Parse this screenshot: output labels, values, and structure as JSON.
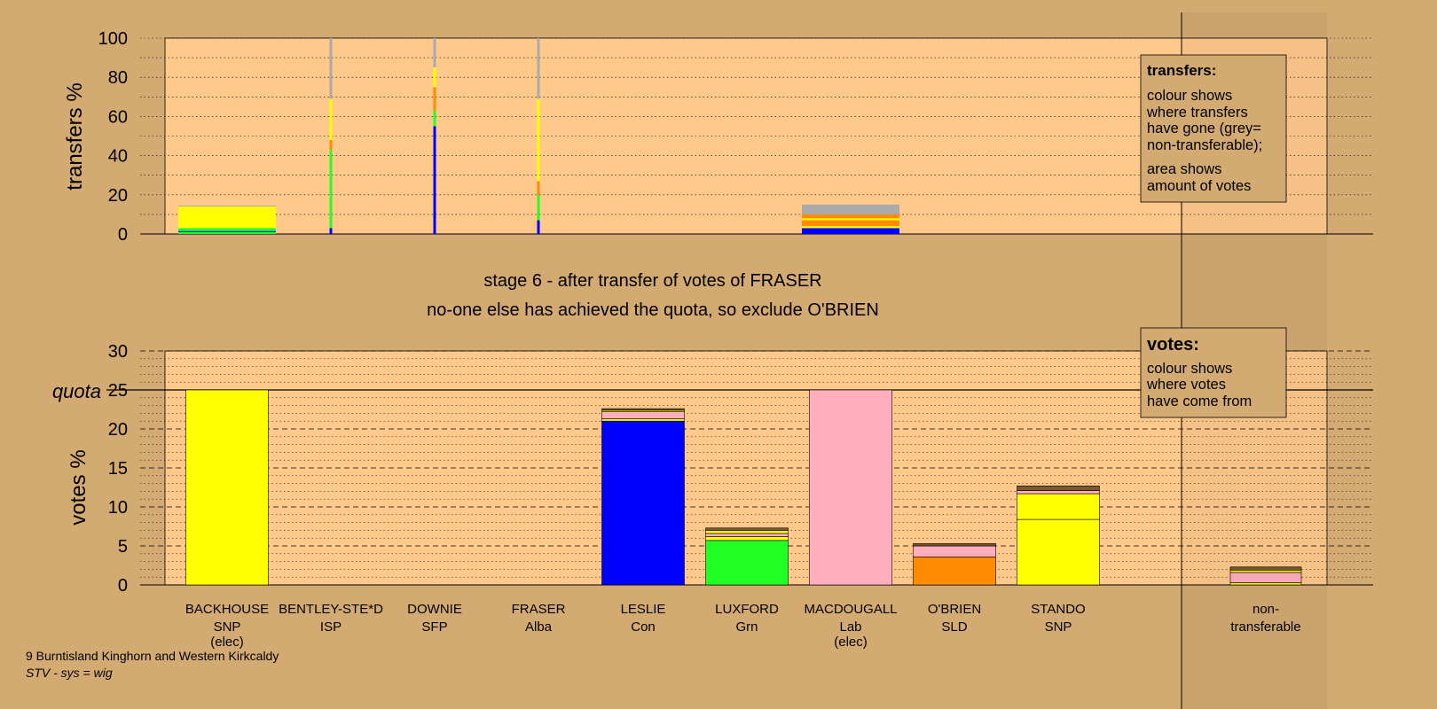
{
  "colors": {
    "background": "#d4aa73",
    "plot_area": "#ffc98c",
    "SNP": "#ffff00",
    "Con": "#0000ff",
    "Grn": "#22ff22",
    "Lab": "#ffaec0",
    "SLD": "#ff8c00",
    "non_transferable": "#aaaaaa",
    "other": "#7a5a2a"
  },
  "stage_title": "stage 6 - after transfer of votes of FRASER",
  "stage_note": "no-one else has achieved the quota, so exclude O'BRIEN",
  "footer": {
    "ward": "9 Burntisland Kinghorn and Western Kirkcaldy",
    "system": "STV - sys = wig"
  },
  "legend_transfers": {
    "title": "transfers:",
    "lines": [
      "colour shows",
      "where transfers",
      "have gone (grey=",
      "non-transferable);",
      "area shows",
      "amount of votes"
    ]
  },
  "legend_votes": {
    "title": "votes:",
    "lines": [
      "colour shows",
      "where votes",
      "have come from"
    ]
  },
  "chart_data": [
    {
      "type": "bar",
      "ylabel": "transfers %",
      "ylim": [
        0,
        100
      ],
      "yticks": [
        0,
        20,
        40,
        60,
        80,
        100
      ],
      "bars": [
        {
          "candidate": "BACKHOUSE",
          "width": "wide",
          "segments": [
            {
              "party": "Grn",
              "value": 1
            },
            {
              "party": "Con",
              "value": 0.5
            },
            {
              "party": "Grn",
              "value": 1.5
            },
            {
              "party": "SNP",
              "value": 11
            },
            {
              "party": "non_transferable",
              "value": 0.5
            }
          ]
        },
        {
          "candidate": "BENTLEY-STE*D",
          "width": "thin",
          "segments": [
            {
              "party": "Con",
              "value": 3
            },
            {
              "party": "Grn",
              "value": 40
            },
            {
              "party": "SLD",
              "value": 5
            },
            {
              "party": "SNP",
              "value": 21
            },
            {
              "party": "non_transferable",
              "value": 31
            }
          ]
        },
        {
          "candidate": "DOWNIE",
          "width": "thin",
          "segments": [
            {
              "party": "Con",
              "value": 55
            },
            {
              "party": "Grn",
              "value": 8
            },
            {
              "party": "SLD",
              "value": 12
            },
            {
              "party": "SNP",
              "value": 10
            },
            {
              "party": "non_transferable",
              "value": 15
            }
          ]
        },
        {
          "candidate": "FRASER",
          "width": "thin",
          "segments": [
            {
              "party": "Con",
              "value": 7
            },
            {
              "party": "Grn",
              "value": 13
            },
            {
              "party": "SLD",
              "value": 7
            },
            {
              "party": "SNP",
              "value": 42
            },
            {
              "party": "non_transferable",
              "value": 31
            }
          ]
        },
        {
          "candidate": "MACDOUGALL",
          "width": "wide",
          "segments": [
            {
              "party": "Con",
              "value": 3
            },
            {
              "party": "SNP",
              "value": 1
            },
            {
              "party": "SLD",
              "value": 3
            },
            {
              "party": "SNP",
              "value": 1
            },
            {
              "party": "SLD",
              "value": 2
            },
            {
              "party": "non_transferable",
              "value": 5
            }
          ]
        }
      ]
    },
    {
      "type": "bar",
      "ylabel": "votes %",
      "ylim": [
        0,
        30
      ],
      "yticks": [
        0,
        5,
        10,
        15,
        20,
        25,
        30
      ],
      "quota": 25,
      "quota_label": "quota",
      "candidates": [
        {
          "name": "BACKHOUSE",
          "party": "SNP",
          "status": "(elec)",
          "segments": [
            {
              "party": "SNP",
              "value": 25
            }
          ]
        },
        {
          "name": "BENTLEY-STE*D",
          "party": "ISP",
          "status": "",
          "segments": []
        },
        {
          "name": "DOWNIE",
          "party": "SFP",
          "status": "",
          "segments": []
        },
        {
          "name": "FRASER",
          "party": "Alba",
          "status": "",
          "segments": []
        },
        {
          "name": "LESLIE",
          "party": "Con",
          "status": "",
          "segments": [
            {
              "party": "Con",
              "value": 21
            },
            {
              "party": "SNP",
              "value": 0.3
            },
            {
              "party": "Lab",
              "value": 0.9
            },
            {
              "party": "SNP",
              "value": 0.2
            },
            {
              "party": "other",
              "value": 0.2
            }
          ]
        },
        {
          "name": "LUXFORD",
          "party": "Grn",
          "status": "",
          "segments": [
            {
              "party": "Grn",
              "value": 5.7
            },
            {
              "party": "SNP",
              "value": 0.5
            },
            {
              "party": "Lab",
              "value": 0.4
            },
            {
              "party": "SNP",
              "value": 0.4
            },
            {
              "party": "other",
              "value": 0.3
            }
          ]
        },
        {
          "name": "MACDOUGALL",
          "party": "Lab",
          "status": "(elec)",
          "segments": [
            {
              "party": "Lab",
              "value": 25
            }
          ]
        },
        {
          "name": "O'BRIEN",
          "party": "SLD",
          "status": "",
          "segments": [
            {
              "party": "SLD",
              "value": 3.6
            },
            {
              "party": "Lab",
              "value": 1.4
            },
            {
              "party": "other",
              "value": 0.3
            }
          ]
        },
        {
          "name": "STANDO",
          "party": "SNP",
          "status": "",
          "segments": [
            {
              "party": "SNP",
              "value": 8.4
            },
            {
              "party": "SNP",
              "value": 3.3
            },
            {
              "party": "Lab",
              "value": 0.4
            },
            {
              "party": "other",
              "value": 0.6
            }
          ]
        },
        {
          "name": "non-",
          "party": "transferable",
          "status": "",
          "segments": [
            {
              "party": "SNP",
              "value": 0.3
            },
            {
              "party": "Lab",
              "value": 1.3
            },
            {
              "party": "SNP",
              "value": 0.3
            },
            {
              "party": "other",
              "value": 0.4
            }
          ]
        }
      ]
    }
  ]
}
